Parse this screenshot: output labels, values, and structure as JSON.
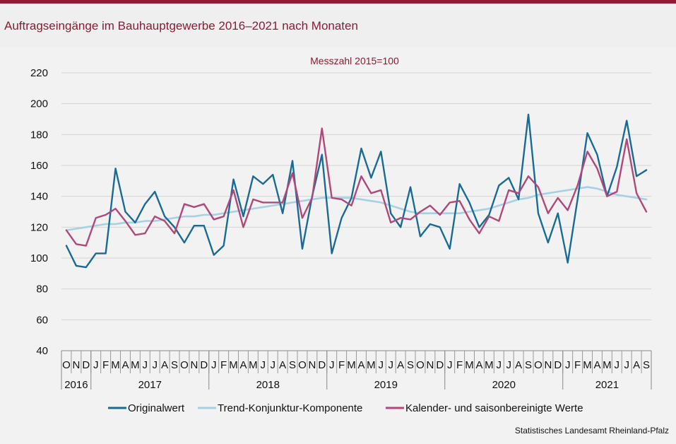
{
  "title": "Auftragseingänge im Bauhauptgewerbe 2016–2021 nach Monaten",
  "source": "Statistisches Landesamt Rheinland-Pfalz",
  "colors": {
    "brand": "#8a1c33",
    "original": "#1a6b94",
    "trend": "#a8d0e4",
    "adjusted": "#b0487a"
  },
  "chart_data": {
    "type": "line",
    "unit": "Messzahl 2015=100",
    "ylim": [
      40,
      220
    ],
    "yticks": [
      40,
      60,
      80,
      100,
      120,
      140,
      160,
      180,
      200,
      220
    ],
    "grid": "horizontal",
    "legend_position": "bottom",
    "months": [
      "O",
      "N",
      "D",
      "J",
      "F",
      "M",
      "A",
      "M",
      "J",
      "J",
      "A",
      "S",
      "O",
      "N",
      "D",
      "J",
      "F",
      "M",
      "A",
      "M",
      "J",
      "J",
      "A",
      "S",
      "O",
      "N",
      "D",
      "J",
      "F",
      "M",
      "A",
      "M",
      "J",
      "J",
      "A",
      "S",
      "O",
      "N",
      "D",
      "J",
      "F",
      "M",
      "A",
      "M",
      "J",
      "J",
      "A",
      "S",
      "O",
      "N",
      "D",
      "J",
      "F",
      "M",
      "A",
      "M",
      "J",
      "J",
      "A",
      "S"
    ],
    "years": [
      {
        "label": "2016",
        "count": 3
      },
      {
        "label": "2017",
        "count": 12
      },
      {
        "label": "2018",
        "count": 12
      },
      {
        "label": "2019",
        "count": 12
      },
      {
        "label": "2020",
        "count": 12
      },
      {
        "label": "2021",
        "count": 9
      }
    ],
    "series": [
      {
        "name": "Originalwert",
        "values": [
          108,
          95,
          94,
          103,
          103,
          158,
          130,
          123,
          135,
          143,
          127,
          120,
          110,
          121,
          121,
          102,
          108,
          151,
          127,
          153,
          148,
          154,
          129,
          163,
          106,
          140,
          167,
          103,
          126,
          139,
          171,
          152,
          169,
          129,
          120,
          146,
          114,
          122,
          120,
          106,
          148,
          136,
          120,
          128,
          147,
          152,
          138,
          193,
          129,
          110,
          129,
          97,
          138,
          181,
          167,
          140,
          159,
          189,
          153,
          157
        ]
      },
      {
        "name": "Trend-Konjunktur-Komponente",
        "values": [
          118,
          119,
          120,
          121,
          122,
          122,
          123,
          123,
          124,
          124,
          125,
          126,
          127,
          127,
          128,
          128,
          129,
          130,
          131,
          132,
          133,
          134,
          135,
          136,
          137,
          138,
          139,
          139,
          139,
          139,
          138,
          137,
          136,
          134,
          132,
          130,
          129,
          129,
          129,
          129,
          129,
          130,
          131,
          132,
          134,
          136,
          138,
          139,
          141,
          142,
          143,
          144,
          145,
          146,
          145,
          143,
          141,
          140,
          139,
          138
        ]
      },
      {
        "name": "Kalender- und saisonbereinigte Werte",
        "values": [
          118,
          109,
          108,
          126,
          128,
          132,
          124,
          115,
          116,
          127,
          124,
          116,
          135,
          133,
          135,
          125,
          127,
          144,
          120,
          138,
          136,
          136,
          136,
          155,
          126,
          139,
          184,
          139,
          138,
          134,
          153,
          142,
          144,
          123,
          126,
          125,
          130,
          134,
          128,
          136,
          137,
          125,
          116,
          127,
          124,
          144,
          142,
          153,
          146,
          129,
          139,
          131,
          147,
          169,
          158,
          140,
          143,
          177,
          142,
          130
        ]
      }
    ]
  }
}
